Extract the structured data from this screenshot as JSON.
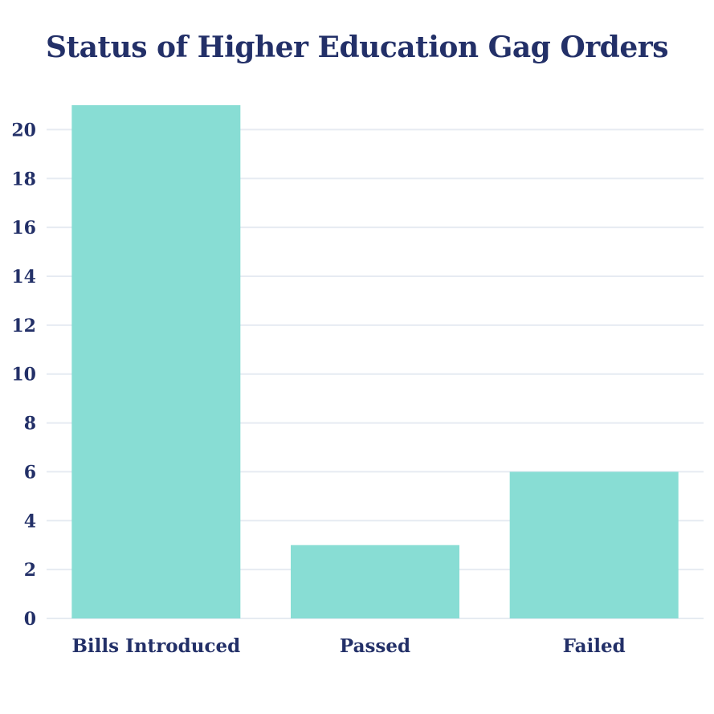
{
  "chart_data": {
    "type": "bar",
    "title": "Status of Higher Education Gag Orders",
    "categories": [
      "Bills Introduced",
      "Passed",
      "Failed"
    ],
    "values": [
      21,
      3,
      6
    ],
    "ylim": [
      0,
      21
    ],
    "yticks": [
      0,
      2,
      4,
      6,
      8,
      10,
      12,
      14,
      16,
      18,
      20
    ],
    "grid": true,
    "bar_color": "#88ddd4",
    "text_color": "#233068",
    "grid_color": "#e6ebf2"
  }
}
